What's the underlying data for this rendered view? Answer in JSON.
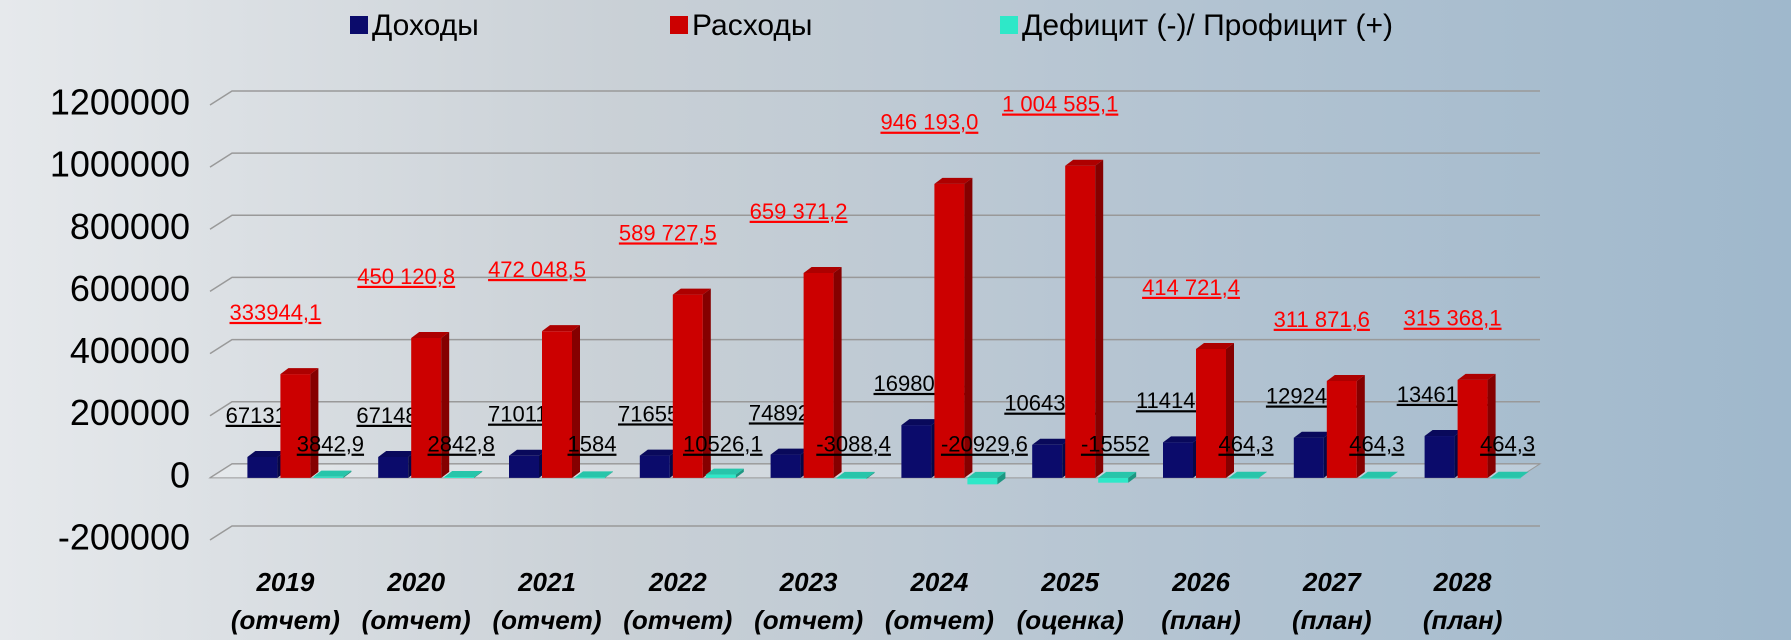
{
  "chart_data": {
    "type": "bar3d",
    "categories": [
      "2019 (отчет)",
      "2020 (отчет)",
      "2021 (отчет)",
      "2022 (отчет)",
      "2023 (отчет)",
      "2024 (отчет)",
      "2025 (оценка)",
      "2026 (план)",
      "2027 (план)",
      "2028 (план)"
    ],
    "series": [
      {
        "name": "Доходы",
        "color": "#0b0b6b",
        "values": [
          67131.4,
          67148.6,
          71011.9,
          71655.4,
          74892.2,
          169803.3,
          106433.1,
          114143.7,
          129240.9,
          134619.4
        ],
        "value_labels": [
          "67131,4",
          "67148,6",
          "71011,9",
          "71655,4",
          "74892,2",
          "169803,3",
          "106433,1",
          "114143,7",
          "129240,9",
          "134619,4"
        ]
      },
      {
        "name": "Расходы",
        "color": "#cc0000",
        "values": [
          333944.1,
          450120.8,
          472048.5,
          589727.5,
          659371.2,
          946193.0,
          1004585.1,
          414721.4,
          311871.6,
          315368.1
        ],
        "value_labels": [
          "333944,1",
          "450 120,8",
          "472 048,5",
          "589 727,5",
          "659 371,2",
          "946 193,0",
          "1 004 585,1",
          "414 721,4",
          "311 871,6",
          "315 368,1"
        ]
      },
      {
        "name": "Дефицит (-)/ Профицит (+)",
        "color": "#2ee8c8",
        "values": [
          3842.9,
          2842.8,
          1584,
          10526.1,
          -3088.4,
          -20929.6,
          -15552,
          464.3,
          464.3,
          464.3
        ],
        "value_labels": [
          "3842,9",
          "2842,8",
          "1584",
          "10526,1",
          "-3088,4",
          "-20929,6",
          "-15552",
          "464,3",
          "464,3",
          "464,3"
        ]
      }
    ],
    "ylim": [
      -200000,
      1200000
    ],
    "yticks": [
      -200000,
      0,
      200000,
      400000,
      600000,
      800000,
      1000000,
      1200000
    ],
    "grid": true
  }
}
